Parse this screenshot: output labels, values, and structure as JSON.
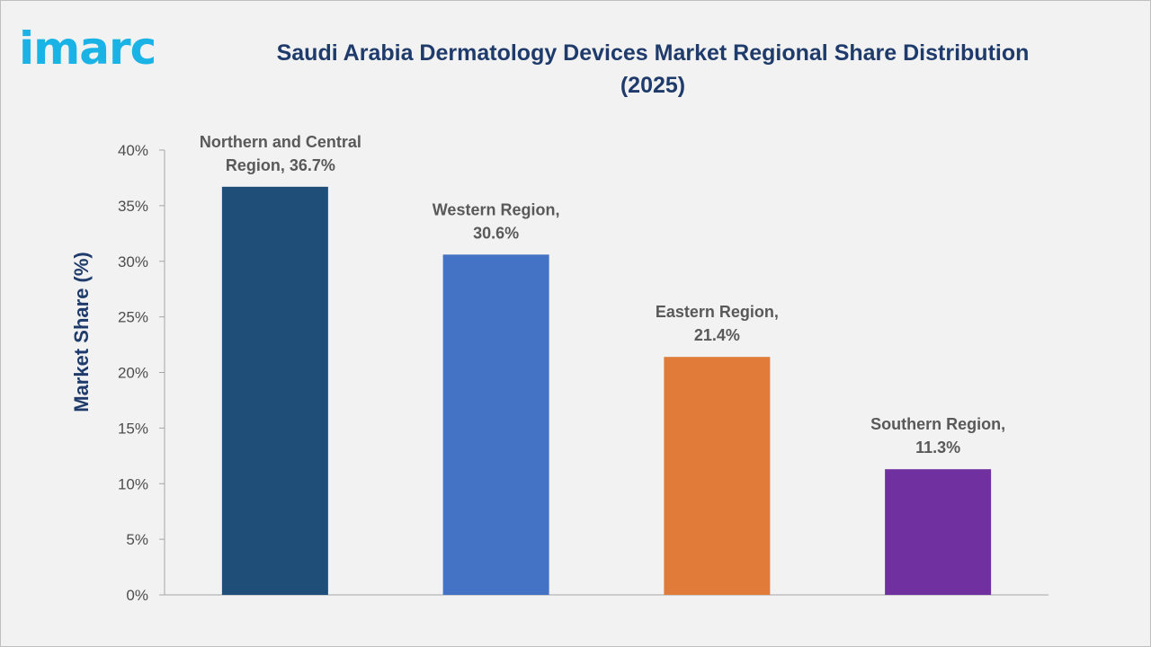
{
  "logo": {
    "text": "imarc",
    "color": "#1ab3e6"
  },
  "chart_data": {
    "type": "bar",
    "title": "Saudi Arabia Dermatology Devices Market Regional Share Distribution (2025)",
    "xlabel": "",
    "ylabel": "Market Share (%)",
    "ylim": [
      0,
      40
    ],
    "yticks": [
      0,
      5,
      10,
      15,
      20,
      25,
      30,
      35,
      40
    ],
    "ytick_suffix": "%",
    "grid": false,
    "categories": [
      "Northern and Central Region",
      "Western Region",
      "Eastern Region",
      "Southern Region"
    ],
    "values": [
      36.7,
      30.6,
      21.4,
      11.3
    ],
    "colors": [
      "#1f4e79",
      "#4472c4",
      "#e07b39",
      "#7030a0"
    ],
    "data_labels": [
      [
        "Northern and Central",
        "Region, 36.7%"
      ],
      [
        "Western Region,",
        "30.6%"
      ],
      [
        "Eastern Region,",
        "21.4%"
      ],
      [
        "Southern Region,",
        "11.3%"
      ]
    ]
  }
}
